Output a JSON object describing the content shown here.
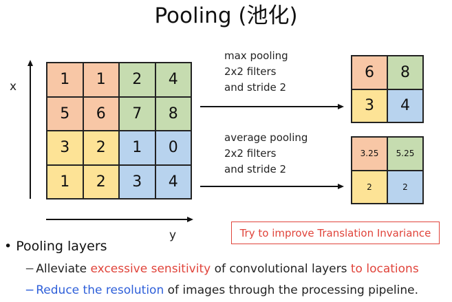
{
  "title": "Pooling (池化)",
  "axes": {
    "x_label": "x",
    "y_label": "y"
  },
  "input_matrix": {
    "rows": [
      [
        "1",
        "1",
        "2",
        "4"
      ],
      [
        "5",
        "6",
        "7",
        "8"
      ],
      [
        "3",
        "2",
        "1",
        "0"
      ],
      [
        "1",
        "2",
        "3",
        "4"
      ]
    ]
  },
  "max_pooling": {
    "line1": "max pooling",
    "line2": "2x2 filters",
    "line3": "and stride 2",
    "output": [
      "6",
      "8",
      "3",
      "4"
    ]
  },
  "average_pooling": {
    "line1": "average pooling",
    "line2": "2x2 filters",
    "line3": "and stride 2",
    "output": [
      "3.25",
      "5.25",
      "2",
      "2"
    ]
  },
  "callout": "Try to improve Translation Invariance",
  "bullets": {
    "main": "Pooling layers",
    "sub1": {
      "pre": "Alleviate ",
      "highlight1": "excessive sensitivity",
      "mid": " of convolutional layers ",
      "highlight2": "to locations"
    },
    "sub2": {
      "highlight": "Reduce the resolution",
      "post": " of images through the processing pipeline."
    }
  },
  "colors": {
    "orange": "#f8c7a6",
    "green": "#c6dcb0",
    "yellow": "#fde396",
    "blue": "#b8d3ee",
    "accent_red": "#e0433a",
    "accent_blue": "#2e5fd9"
  }
}
